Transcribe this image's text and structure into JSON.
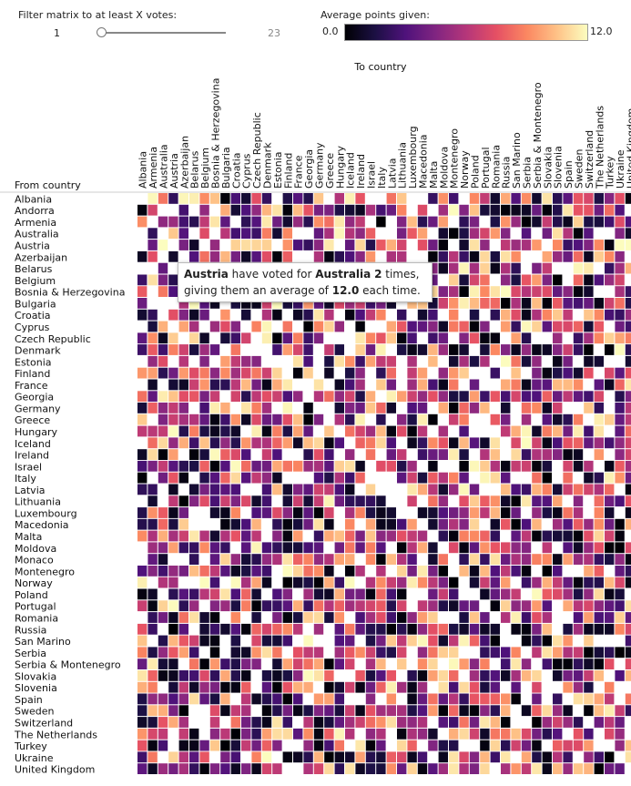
{
  "filter": {
    "label": "Filter matrix to at least X votes:",
    "min_label": "1",
    "max_label": "23",
    "value": 1,
    "min": 1,
    "max": 23
  },
  "legend": {
    "title": "Average points given:",
    "min_label": "0.0",
    "max_label": "12.0",
    "scale": "magma",
    "colors": [
      "#000004",
      "#1c1044",
      "#4f127b",
      "#812581",
      "#b5367a",
      "#e55064",
      "#fb8761",
      "#fec287",
      "#fcfdbf"
    ]
  },
  "tooltip": {
    "from": "Austria",
    "pre": " have voted for ",
    "to": "Australia",
    "count": "2",
    "mid": " times,",
    "line2_pre": "giving them an average of ",
    "avg": "12.0",
    "post": " each time."
  },
  "chart_data": {
    "type": "heatmap",
    "xlabel": "To country",
    "ylabel": "From country",
    "value_range": [
      0,
      12
    ],
    "x": [
      "Albania",
      "Armenia",
      "Australia",
      "Austria",
      "Azerbaijan",
      "Belarus",
      "Belgium",
      "Bosnia & Herzegovina",
      "Bulgaria",
      "Croatia",
      "Cyprus",
      "Czech Republic",
      "Denmark",
      "Estonia",
      "Finland",
      "France",
      "Georgia",
      "Germany",
      "Greece",
      "Hungary",
      "Iceland",
      "Ireland",
      "Israel",
      "Italy",
      "Latvia",
      "Lithuania",
      "Luxembourg",
      "Macedonia",
      "Malta",
      "Moldova",
      "Montenegro",
      "Norway",
      "Poland",
      "Portugal",
      "Romania",
      "Russia",
      "San Marino",
      "Serbia",
      "Serbia & Montenegro",
      "Slovakia",
      "Slovenia",
      "Spain",
      "Sweden",
      "Switzerland",
      "The Netherlands",
      "Turkey",
      "Ukraine",
      "United Kingdom"
    ],
    "y": [
      "Albania",
      "Andorra",
      "Armenia",
      "Australia",
      "Austria",
      "Azerbaijan",
      "Belarus",
      "Belgium",
      "Bosnia & Herzegovina",
      "Bulgaria",
      "Croatia",
      "Cyprus",
      "Czech Republic",
      "Denmark",
      "Estonia",
      "Finland",
      "France",
      "Georgia",
      "Germany",
      "Greece",
      "Hungary",
      "Iceland",
      "Ireland",
      "Israel",
      "Italy",
      "Latvia",
      "Lithuania",
      "Luxembourg",
      "Macedonia",
      "Malta",
      "Moldova",
      "Monaco",
      "Montenegro",
      "Norway",
      "Poland",
      "Portugal",
      "Romania",
      "Russia",
      "San Marino",
      "Serbia",
      "Serbia & Montenegro",
      "Slovakia",
      "Slovenia",
      "Spain",
      "Sweden",
      "Switzerland",
      "The Netherlands",
      "Turkey",
      "Ukraine",
      "United Kingdom"
    ],
    "highlight": {
      "from": "Austria",
      "to": "Australia",
      "value": 12.0,
      "votes": 2
    }
  }
}
